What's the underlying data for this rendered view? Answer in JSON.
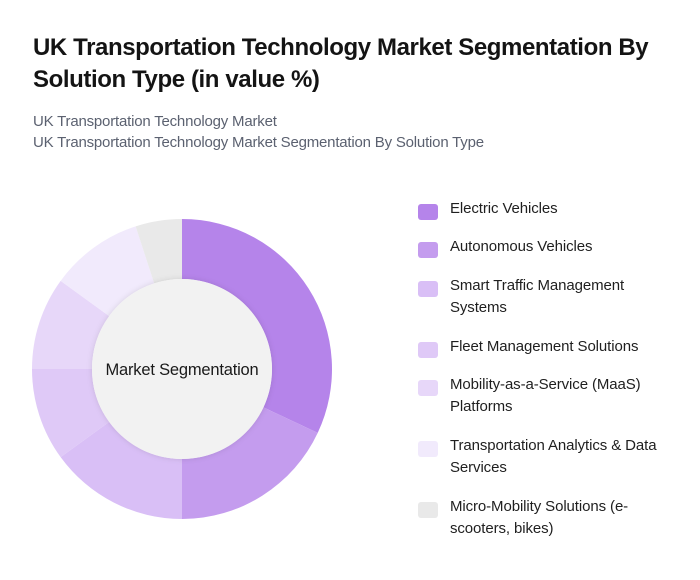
{
  "header": {
    "title": "UK Transportation Technology Market Segmentation By Solution Type (in value %)",
    "subtitle_line1": "UK Transportation Technology Market",
    "subtitle_line2": "UK Transportation Technology Market Segmentation By Solution Type"
  },
  "chart": {
    "center_label": "Market Segmentation",
    "inner_color": "#f2f2f2"
  },
  "legend": [
    {
      "label": "Electric Vehicles",
      "color": "#b584ea"
    },
    {
      "label": "Autonomous Vehicles",
      "color": "#c49cee"
    },
    {
      "label": "Smart Traffic Management Systems",
      "color": "#d9bff6"
    },
    {
      "label": "Fleet Management Solutions",
      "color": "#dfc9f7"
    },
    {
      "label": "Mobility-as-a-Service (MaaS) Platforms",
      "color": "#e7d7f9"
    },
    {
      "label": "Transportation Analytics & Data Services",
      "color": "#f1eafc"
    },
    {
      "label": "Micro-Mobility Solutions (e-scooters, bikes)",
      "color": "#e9e9e9"
    }
  ],
  "chart_data": {
    "type": "pie",
    "subtype": "donut",
    "title": "UK Transportation Technology Market Segmentation By Solution Type (in value %)",
    "subtitle": "UK Transportation Technology Market Segmentation By Solution Type",
    "center_label": "Market Segmentation",
    "categories": [
      "Electric Vehicles",
      "Autonomous Vehicles",
      "Smart Traffic Management Systems",
      "Fleet Management Solutions",
      "Mobility-as-a-Service (MaaS) Platforms",
      "Transportation Analytics & Data Services",
      "Micro-Mobility Solutions (e-scooters, bikes)"
    ],
    "values": [
      32,
      18,
      15,
      10,
      10,
      10,
      5
    ],
    "colors": [
      "#b584ea",
      "#c49cee",
      "#d9bff6",
      "#dfc9f7",
      "#e7d7f9",
      "#f1eafc",
      "#e9e9e9"
    ],
    "unit": "%",
    "start_angle": "12 o'clock, clockwise",
    "legend_position": "right",
    "data_labels": false
  }
}
